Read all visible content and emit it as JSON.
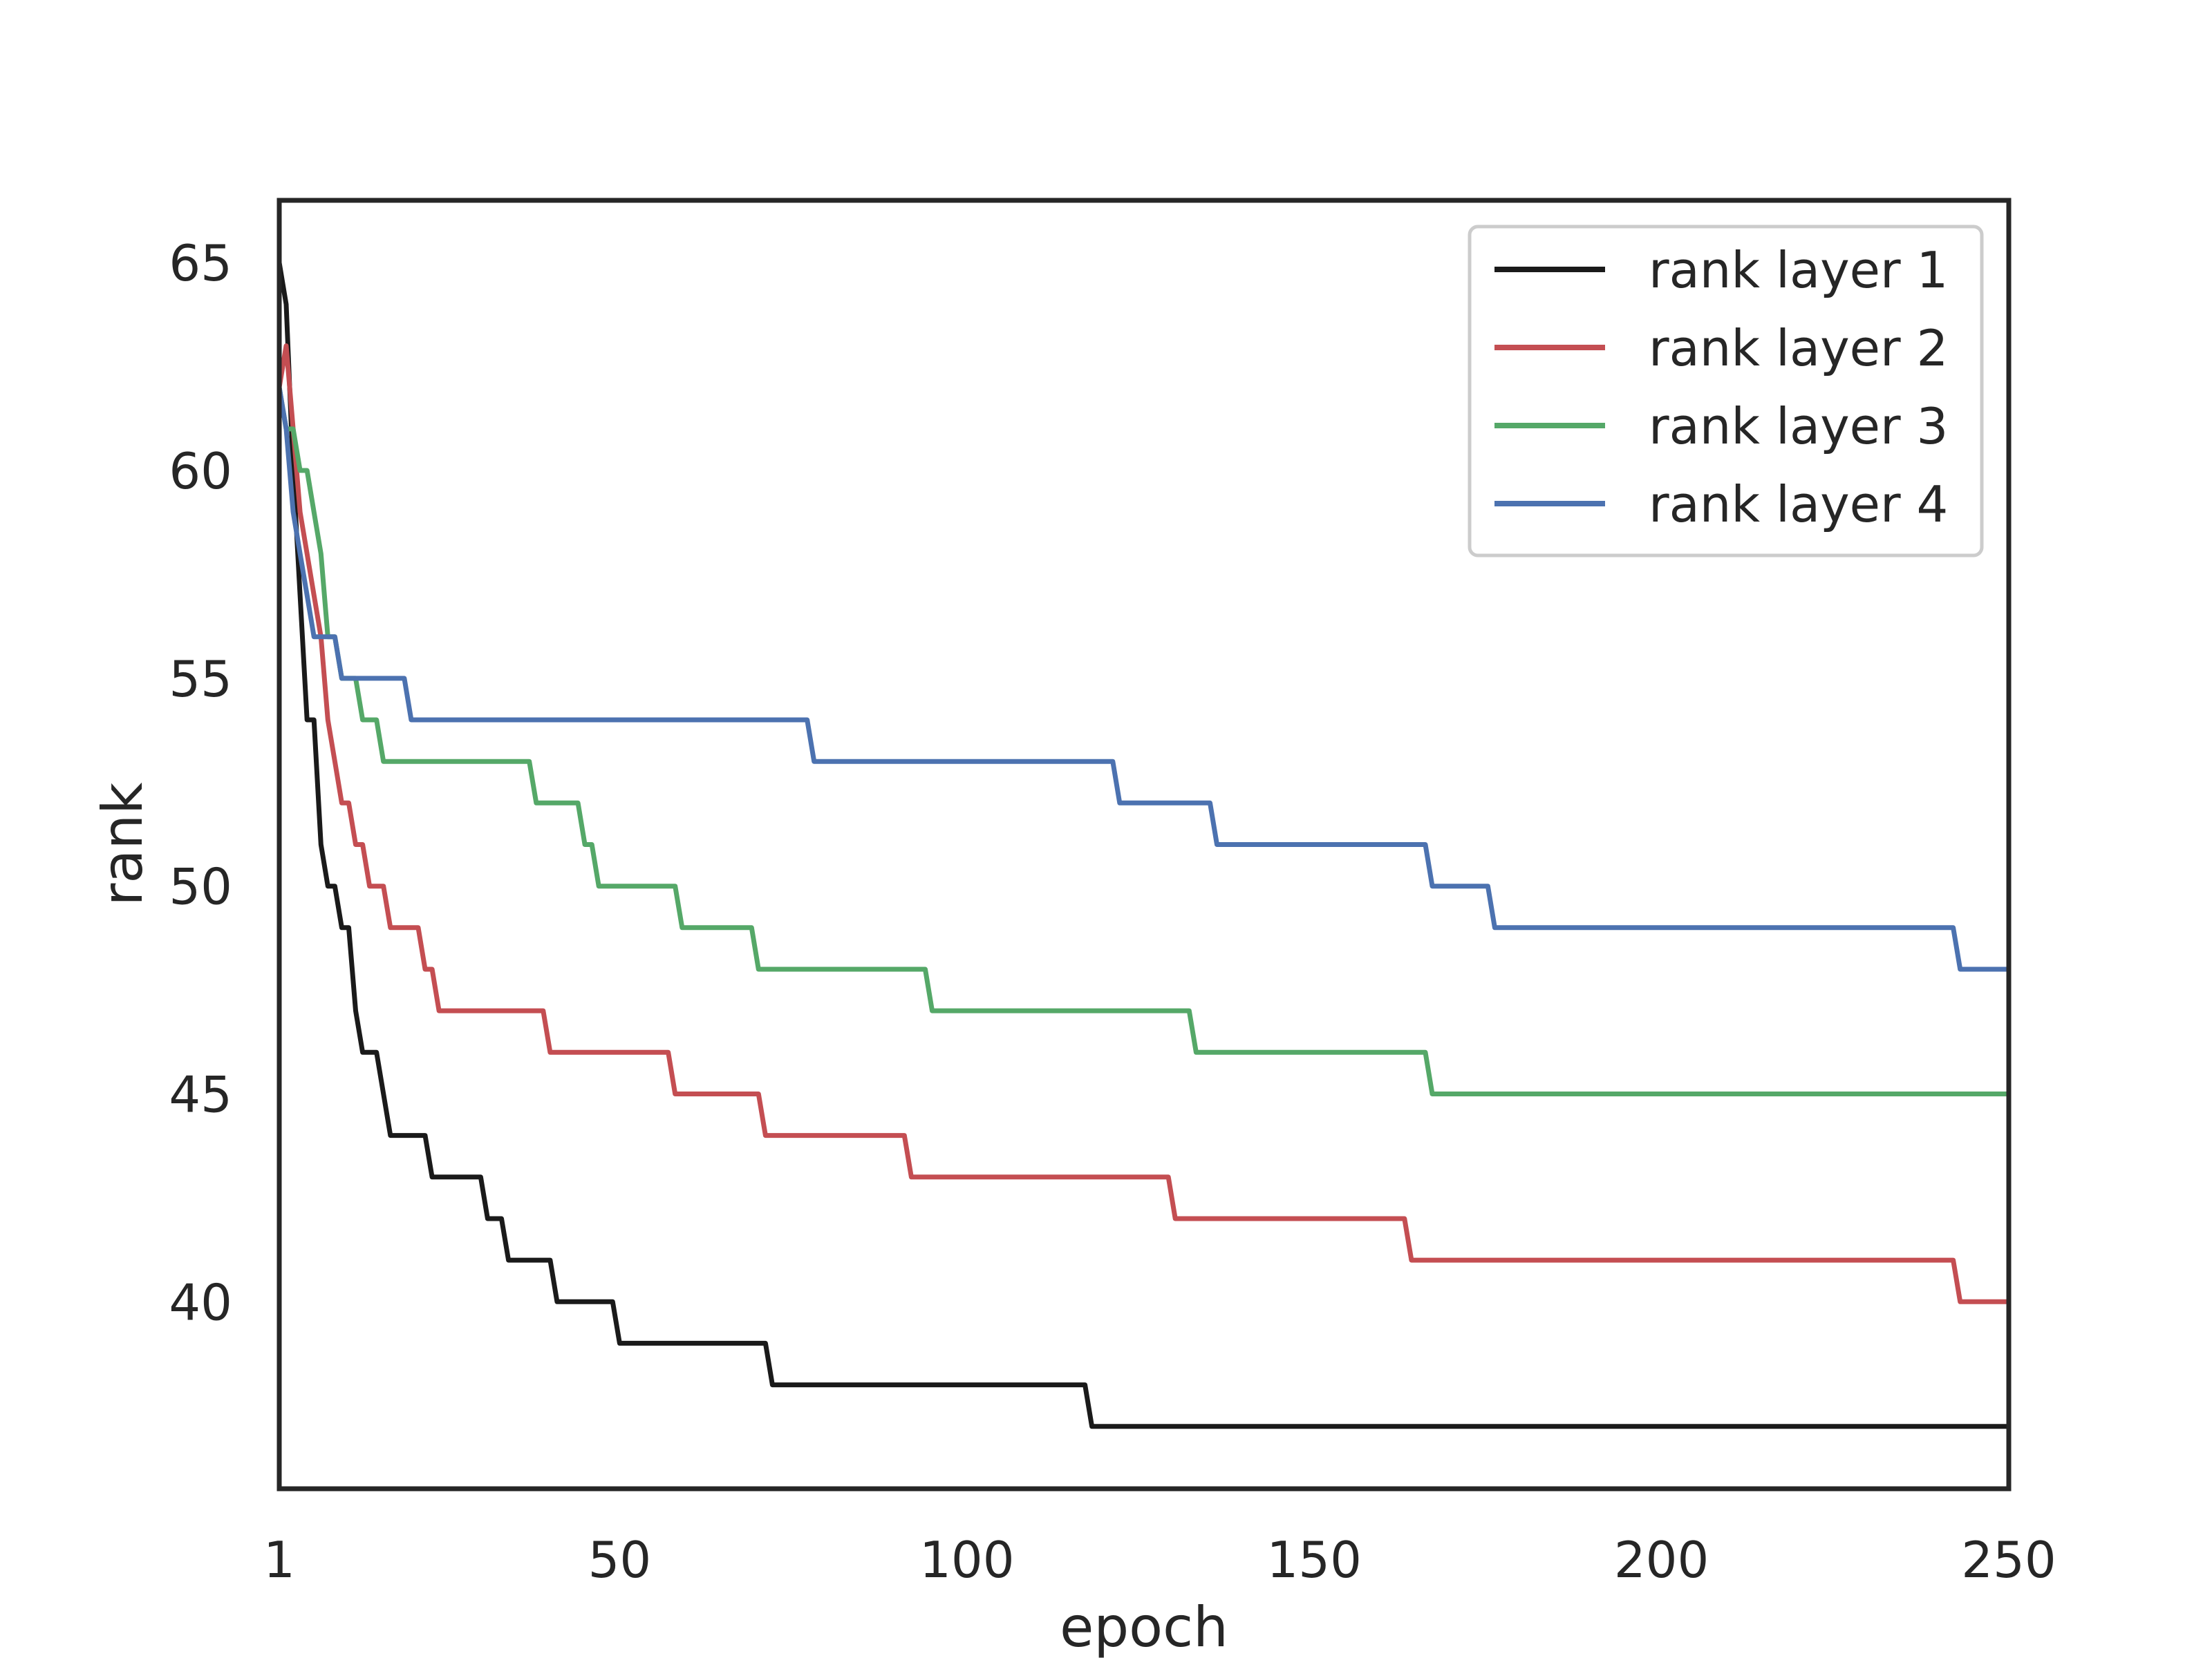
{
  "chart_data": {
    "type": "line",
    "title": "",
    "xlabel": "epoch",
    "ylabel": "rank",
    "xlim": [
      1,
      250
    ],
    "ylim": [
      35.5,
      66.5
    ],
    "grid": false,
    "legend_position": "top-right",
    "x_ticks": [
      1,
      50,
      100,
      150,
      200,
      250
    ],
    "y_ticks": [
      40,
      45,
      50,
      55,
      60,
      65
    ],
    "series": [
      {
        "name": "rank layer 1",
        "color": "#1a1a1a",
        "points": [
          [
            1,
            65
          ],
          [
            2,
            64
          ],
          [
            3,
            60
          ],
          [
            4,
            57
          ],
          [
            5,
            54
          ],
          [
            6,
            54
          ],
          [
            7,
            51
          ],
          [
            8,
            50
          ],
          [
            9,
            50
          ],
          [
            10,
            49
          ],
          [
            11,
            49
          ],
          [
            12,
            47
          ],
          [
            13,
            46
          ],
          [
            14,
            46
          ],
          [
            15,
            46
          ],
          [
            17,
            44
          ],
          [
            22,
            44
          ],
          [
            23,
            43
          ],
          [
            30,
            43
          ],
          [
            31,
            42
          ],
          [
            33,
            42
          ],
          [
            34,
            41
          ],
          [
            40,
            41
          ],
          [
            41,
            40
          ],
          [
            49,
            40
          ],
          [
            50,
            39
          ],
          [
            71,
            39
          ],
          [
            72,
            38
          ],
          [
            117,
            38
          ],
          [
            118,
            37
          ],
          [
            250,
            37
          ]
        ]
      },
      {
        "name": "rank layer 2",
        "color": "#c44e52",
        "points": [
          [
            1,
            62
          ],
          [
            2,
            63
          ],
          [
            3,
            61
          ],
          [
            4,
            59
          ],
          [
            5,
            58
          ],
          [
            6,
            57
          ],
          [
            7,
            56
          ],
          [
            8,
            54
          ],
          [
            9,
            53
          ],
          [
            10,
            52
          ],
          [
            11,
            52
          ],
          [
            12,
            51
          ],
          [
            13,
            51
          ],
          [
            14,
            50
          ],
          [
            15,
            50
          ],
          [
            16,
            50
          ],
          [
            17,
            49
          ],
          [
            21,
            49
          ],
          [
            22,
            48
          ],
          [
            23,
            48
          ],
          [
            24,
            47
          ],
          [
            39,
            47
          ],
          [
            40,
            46
          ],
          [
            57,
            46
          ],
          [
            58,
            45
          ],
          [
            70,
            45
          ],
          [
            71,
            44
          ],
          [
            91,
            44
          ],
          [
            92,
            43
          ],
          [
            129,
            43
          ],
          [
            130,
            42
          ],
          [
            163,
            42
          ],
          [
            164,
            41
          ],
          [
            242,
            41
          ],
          [
            243,
            40
          ],
          [
            250,
            40
          ]
        ]
      },
      {
        "name": "rank layer 3",
        "color": "#55a868",
        "points": [
          [
            1,
            62
          ],
          [
            2,
            61
          ],
          [
            3,
            61
          ],
          [
            4,
            60
          ],
          [
            5,
            60
          ],
          [
            6,
            59
          ],
          [
            7,
            58
          ],
          [
            8,
            56
          ],
          [
            9,
            56
          ],
          [
            10,
            55
          ],
          [
            12,
            55
          ],
          [
            13,
            54
          ],
          [
            15,
            54
          ],
          [
            16,
            53
          ],
          [
            37,
            53
          ],
          [
            38,
            52
          ],
          [
            44,
            52
          ],
          [
            45,
            51
          ],
          [
            46,
            51
          ],
          [
            47,
            50
          ],
          [
            58,
            50
          ],
          [
            59,
            49
          ],
          [
            69,
            49
          ],
          [
            70,
            48
          ],
          [
            94,
            48
          ],
          [
            95,
            47
          ],
          [
            132,
            47
          ],
          [
            133,
            46
          ],
          [
            166,
            46
          ],
          [
            167,
            45
          ],
          [
            250,
            45
          ]
        ]
      },
      {
        "name": "rank layer 4",
        "color": "#4c72b0",
        "points": [
          [
            1,
            62
          ],
          [
            2,
            61
          ],
          [
            3,
            59
          ],
          [
            4,
            58
          ],
          [
            5,
            57
          ],
          [
            6,
            56
          ],
          [
            9,
            56
          ],
          [
            10,
            55
          ],
          [
            19,
            55
          ],
          [
            20,
            54
          ],
          [
            77,
            54
          ],
          [
            78,
            53
          ],
          [
            121,
            53
          ],
          [
            122,
            52
          ],
          [
            135,
            52
          ],
          [
            136,
            51
          ],
          [
            166,
            51
          ],
          [
            167,
            50
          ],
          [
            175,
            50
          ],
          [
            176,
            49
          ],
          [
            242,
            49
          ],
          [
            243,
            48
          ],
          [
            250,
            48
          ]
        ]
      }
    ]
  }
}
